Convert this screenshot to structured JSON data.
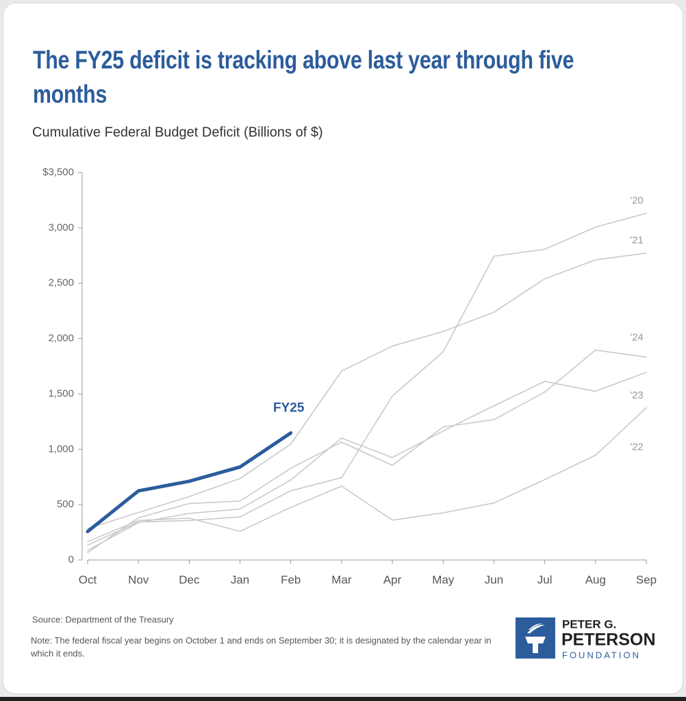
{
  "chart_data": {
    "type": "line",
    "title": "The FY25 deficit is tracking above last year through five months",
    "subtitle": "Cumulative Federal Budget Deficit (Billions of $)",
    "categories": [
      "Oct",
      "Nov",
      "Dec",
      "Jan",
      "Feb",
      "Mar",
      "Apr",
      "May",
      "Jun",
      "Jul",
      "Aug",
      "Sep"
    ],
    "series": [
      {
        "name": "'20",
        "color": "#c9c9c9",
        "values": [
          134,
          343,
          357,
          389,
          625,
          744,
          1481,
          1880,
          2744,
          2807,
          3007,
          3132
        ]
      },
      {
        "name": "'21",
        "color": "#c9c9c9",
        "values": [
          284,
          429,
          573,
          736,
          1047,
          1706,
          1932,
          2064,
          2238,
          2540,
          2711,
          2772
        ]
      },
      {
        "name": "'22",
        "color": "#c9c9c9",
        "values": [
          165,
          357,
          378,
          259,
          475,
          667,
          360,
          426,
          515,
          726,
          946,
          1375
        ]
      },
      {
        "name": "'23",
        "color": "#c9c9c9",
        "values": [
          88,
          337,
          421,
          460,
          723,
          1101,
          925,
          1165,
          1393,
          1613,
          1524,
          1695
        ]
      },
      {
        "name": "'24",
        "color": "#c9c9c9",
        "values": [
          67,
          381,
          510,
          532,
          828,
          1065,
          855,
          1202,
          1268,
          1516,
          1896,
          1833
        ]
      },
      {
        "name": "FY25",
        "color": "#2c5c9c",
        "values": [
          257,
          624,
          711,
          840,
          1147,
          null,
          null,
          null,
          null,
          null,
          null,
          null
        ]
      }
    ],
    "ylim": [
      0,
      3500
    ],
    "yticks": [
      0,
      500,
      {
        "value": 1000,
        "label": "1,000"
      },
      {
        "value": 1500,
        "label": "1,500"
      },
      {
        "value": 2000,
        "label": "2,000"
      },
      {
        "value": 2500,
        "label": "2,500"
      },
      {
        "value": 3000,
        "label": "3,000"
      },
      {
        "value": 3500,
        "label": "$3,500"
      }
    ],
    "source": "Source: Department of the Treasury",
    "note": "Note: The federal fiscal year begins on October 1 and ends on September 30; it is designated by the calendar year in which it ends.",
    "logo": [
      "PETER G.",
      "PETERSON",
      "FOUNDATION"
    ]
  }
}
